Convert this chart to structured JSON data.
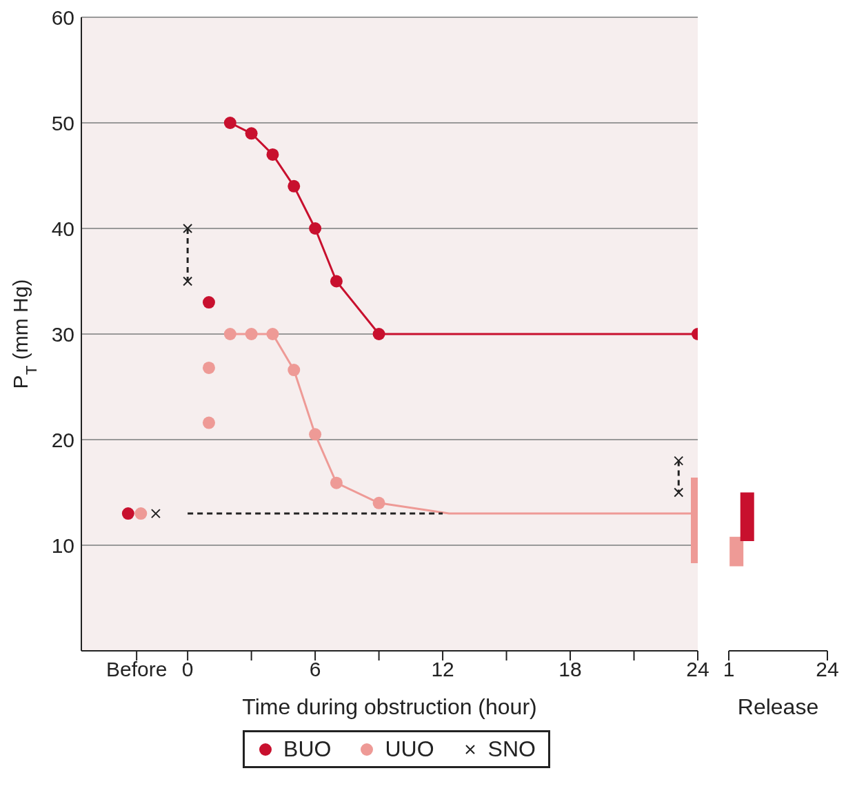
{
  "chart_data": [
    {
      "type": "line",
      "xlabel": "Time during obstruction (hour)",
      "ylabel": "P$_{T}$ (mm Hg)",
      "xlim": [
        -5,
        24
      ],
      "ylim": [
        0,
        60
      ],
      "xticks": [
        {
          "value": -2.4,
          "label": "Before"
        },
        0,
        {
          "value": 3,
          "label": null
        },
        6,
        {
          "value": 9,
          "label": null
        },
        12,
        {
          "value": 15,
          "label": null
        },
        18,
        {
          "value": 21,
          "label": null
        },
        24
      ],
      "yticks": [
        10,
        20,
        30,
        40,
        50,
        60
      ],
      "grid": "y",
      "legend": "bottom",
      "series": [
        {
          "name": "BUO",
          "color": "#c8102e",
          "marker": "circle",
          "x": [
            2,
            3,
            4,
            5,
            6,
            7,
            9,
            24
          ],
          "values": [
            50,
            49,
            47,
            44,
            40,
            35,
            30,
            30
          ]
        },
        {
          "name": "UUO",
          "color": "#ee9a96",
          "marker": "circle",
          "x": [
            2,
            3,
            4,
            5,
            6,
            7,
            9
          ],
          "values": [
            30,
            30,
            30,
            26.6,
            20.5,
            15.9,
            14
          ]
        },
        {
          "type": "scatter",
          "name": "SNO",
          "color": "#222222",
          "marker": "cross",
          "x": [
            -1.5,
            0,
            0,
            23.1,
            23.1
          ],
          "values": [
            13,
            40,
            35,
            18,
            15
          ]
        },
        {
          "type": "scatter",
          "color": "#c8102e",
          "marker": "circle",
          "x": [
            -2.8,
            1
          ],
          "values": [
            13,
            33
          ]
        },
        {
          "type": "scatter",
          "color": "#ee9a96",
          "marker": "circle",
          "x": [
            -2.2,
            1,
            1
          ],
          "values": [
            13,
            26.8,
            21.6
          ]
        },
        {
          "color": "#ee9a96",
          "marker": "none",
          "x": [
            9,
            12.3,
            24
          ],
          "values": [
            14,
            13,
            13
          ]
        },
        {
          "color": "#222222",
          "marker": "none",
          "line_style": "dashed",
          "x": [
            0,
            12
          ],
          "values": [
            13,
            13
          ]
        },
        {
          "color": "#222222",
          "marker": "none",
          "line_style": "dashed",
          "x": [
            0,
            0
          ],
          "values": [
            40,
            35
          ]
        },
        {
          "color": "#222222",
          "marker": "none",
          "line_style": "dashed",
          "x": [
            23.1,
            23.1
          ],
          "values": [
            18,
            15
          ]
        },
        {
          "type": "bar",
          "color": "#ee9a96",
          "x": [
            24
          ],
          "base": [
            8.3
          ],
          "values": [
            8.1
          ]
        }
      ]
    },
    {
      "type": "bar",
      "xlabel": "Release",
      "xlim": [
        1,
        24
      ],
      "ylim": [
        0,
        60
      ],
      "xticks": [
        1,
        24
      ],
      "tick_labels": "x",
      "series": [
        {
          "color": "#ee9a96",
          "x": [
            2.8
          ],
          "base": [
            8
          ],
          "values": [
            2.8
          ]
        },
        {
          "color": "#c8102e",
          "x": [
            5.3
          ],
          "base": [
            10.4
          ],
          "values": [
            4.6
          ]
        }
      ]
    }
  ]
}
